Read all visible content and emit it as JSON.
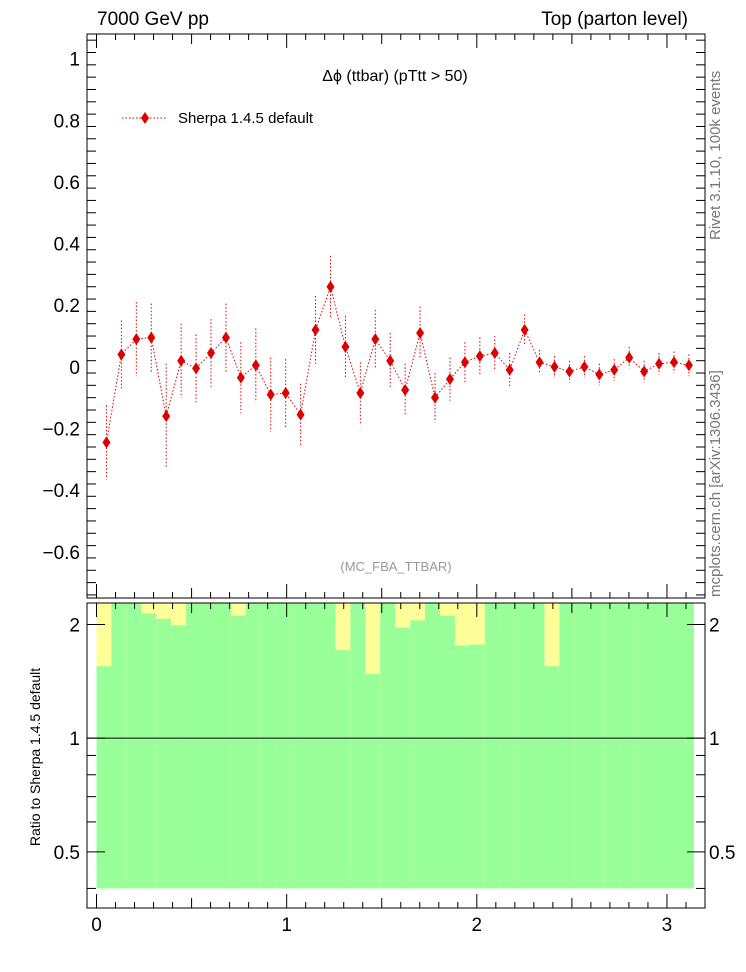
{
  "header": {
    "left": "7000 GeV pp",
    "right": "Top (parton level)"
  },
  "side_labels": {
    "rivet": "Rivet 3.1.10,  100k events",
    "mcplots": "mcplots.cern.ch [arXiv:1306.3436]"
  },
  "colors": {
    "series": "#dd0000",
    "band_outer": "#ffff99",
    "band_inner": "#99ff99"
  },
  "chart_data": [
    {
      "type": "scatter",
      "title": "Δϕ (ttbar) (pTtt > 50)",
      "watermark": "(MC_FBA_TTBAR)",
      "legend": "top-left",
      "xlim": [
        -0.05,
        3.2
      ],
      "ylim": [
        -0.75,
        1.08
      ],
      "yticks": [
        -0.6,
        -0.4,
        -0.2,
        0,
        0.2,
        0.4,
        0.6,
        0.8,
        1
      ],
      "ytick_labels": [
        "−0.6",
        "−0.4",
        "−0.2",
        "0",
        "0.2",
        "0.4",
        "0.6",
        "0.8",
        "1"
      ],
      "series": [
        {
          "name": "Sherpa 1.4.5 default",
          "x": [
            0.0524,
            0.1309,
            0.2094,
            0.288,
            0.3665,
            0.4451,
            0.5236,
            0.6021,
            0.6807,
            0.7592,
            0.8378,
            0.9163,
            0.9948,
            1.0734,
            1.1519,
            1.2305,
            1.309,
            1.3875,
            1.4661,
            1.5446,
            1.6232,
            1.7017,
            1.7802,
            1.8588,
            1.9373,
            2.0159,
            2.0944,
            2.1729,
            2.2515,
            2.33,
            2.4086,
            2.4871,
            2.5656,
            2.6442,
            2.7227,
            2.8013,
            2.8798,
            2.9583,
            3.0369,
            3.1154
          ],
          "y": [
            -0.245,
            0.04,
            0.09,
            0.095,
            -0.16,
            0.02,
            -0.005,
            0.045,
            0.095,
            -0.035,
            0.005,
            -0.09,
            -0.085,
            -0.155,
            0.12,
            0.26,
            0.065,
            -0.085,
            0.09,
            0.02,
            -0.075,
            0.11,
            -0.1,
            -0.04,
            0.015,
            0.035,
            0.045,
            -0.01,
            0.12,
            0.015,
            0.0,
            -0.015,
            0.0,
            -0.025,
            -0.01,
            0.03,
            -0.015,
            0.01,
            0.015,
            0.005
          ],
          "err": [
            0.12,
            0.11,
            0.12,
            0.11,
            0.17,
            0.12,
            0.11,
            0.11,
            0.11,
            0.115,
            0.12,
            0.12,
            0.11,
            0.1,
            0.11,
            0.1,
            0.1,
            0.1,
            0.095,
            0.09,
            0.085,
            0.085,
            0.08,
            0.07,
            0.065,
            0.06,
            0.055,
            0.055,
            0.05,
            0.04,
            0.035,
            0.035,
            0.035,
            0.035,
            0.035,
            0.035,
            0.035,
            0.035,
            0.035,
            0.035
          ]
        }
      ]
    },
    {
      "type": "area",
      "ylabel": "Ratio to Sherpa 1.4.5 default",
      "xlim": [
        -0.05,
        3.2
      ],
      "ylim": [
        0.355,
        2.28
      ],
      "xticks": [
        0,
        1,
        2,
        3
      ],
      "xtick_labels": [
        "0",
        "1",
        "2",
        "3"
      ],
      "yticks": [
        0.5,
        1,
        2
      ],
      "ytick_labels": [
        "0.5",
        "1",
        "2"
      ],
      "reference_line": 1,
      "bins": [
        0,
        0.0785,
        0.1571,
        0.2356,
        0.3142,
        0.3927,
        0.4712,
        0.5498,
        0.6283,
        0.7069,
        0.7854,
        0.8639,
        0.9425,
        1.021,
        1.0996,
        1.1781,
        1.2566,
        1.3352,
        1.4137,
        1.4923,
        1.5708,
        1.6493,
        1.7279,
        1.8064,
        1.885,
        1.9635,
        2.042,
        2.1206,
        2.1991,
        2.2777,
        2.3562,
        2.4347,
        2.5133,
        2.5918,
        2.6704,
        2.7489,
        2.8274,
        2.906,
        2.9845,
        3.0631,
        3.1416
      ],
      "outer_band": [
        [
          0.55,
          2.6
        ],
        [
          0.4,
          2.8
        ],
        [
          0.4,
          2.8
        ],
        [
          0.4,
          2.8
        ],
        [
          0.4,
          2.8
        ],
        [
          0.4,
          2.8
        ],
        [
          0.4,
          2.8
        ],
        [
          0.4,
          2.8
        ],
        [
          0.4,
          2.8
        ],
        [
          0.4,
          2.8
        ],
        [
          0.4,
          2.8
        ],
        [
          0.4,
          2.8
        ],
        [
          0.4,
          2.8
        ],
        [
          0.4,
          2.8
        ],
        [
          0.4,
          2.8
        ],
        [
          0.63,
          2.2
        ],
        [
          0.4,
          2.8
        ],
        [
          0.4,
          2.8
        ],
        [
          0.4,
          2.8
        ],
        [
          0.4,
          2.8
        ],
        [
          0.4,
          2.8
        ],
        [
          0.4,
          2.8
        ],
        [
          0.4,
          2.8
        ],
        [
          0.4,
          2.8
        ],
        [
          0.4,
          2.8
        ],
        [
          0.4,
          2.8
        ],
        [
          0.4,
          2.8
        ],
        [
          0.4,
          2.8
        ],
        [
          0.4,
          2.8
        ],
        [
          0.52,
          2.2
        ],
        [
          0.4,
          2.8
        ],
        [
          0.4,
          2.8
        ],
        [
          0.4,
          2.8
        ],
        [
          0.4,
          2.8
        ],
        [
          0.4,
          2.8
        ],
        [
          0.4,
          2.8
        ],
        [
          0.4,
          2.8
        ],
        [
          0.4,
          2.8
        ],
        [
          0.4,
          2.8
        ],
        [
          0.4,
          2.8
        ]
      ],
      "inner_band": [
        [
          0.4,
          1.55
        ],
        [
          0.4,
          2.8
        ],
        [
          0.4,
          2.8
        ],
        [
          0.4,
          2.14
        ],
        [
          0.4,
          2.07
        ],
        [
          0.4,
          1.99
        ],
        [
          0.4,
          2.8
        ],
        [
          0.4,
          2.8
        ],
        [
          0.4,
          2.8
        ],
        [
          0.4,
          2.11
        ],
        [
          0.4,
          2.8
        ],
        [
          0.4,
          2.8
        ],
        [
          0.4,
          2.8
        ],
        [
          0.4,
          2.8
        ],
        [
          0.4,
          2.8
        ],
        [
          0.4,
          2.8
        ],
        [
          0.4,
          1.71
        ],
        [
          0.4,
          2.8
        ],
        [
          0.4,
          1.48
        ],
        [
          0.4,
          2.8
        ],
        [
          0.4,
          1.96
        ],
        [
          0.4,
          2.05
        ],
        [
          0.4,
          2.8
        ],
        [
          0.4,
          2.11
        ],
        [
          0.4,
          1.76
        ],
        [
          0.4,
          1.77
        ],
        [
          0.4,
          2.8
        ],
        [
          0.4,
          2.8
        ],
        [
          0.4,
          2.8
        ],
        [
          0.4,
          2.8
        ],
        [
          0.4,
          1.55
        ],
        [
          0.4,
          2.8
        ],
        [
          0.4,
          2.8
        ],
        [
          0.4,
          2.8
        ],
        [
          0.4,
          2.8
        ],
        [
          0.4,
          2.8
        ],
        [
          0.4,
          2.8
        ],
        [
          0.4,
          2.8
        ],
        [
          0.4,
          2.8
        ],
        [
          0.4,
          2.8
        ]
      ]
    }
  ]
}
